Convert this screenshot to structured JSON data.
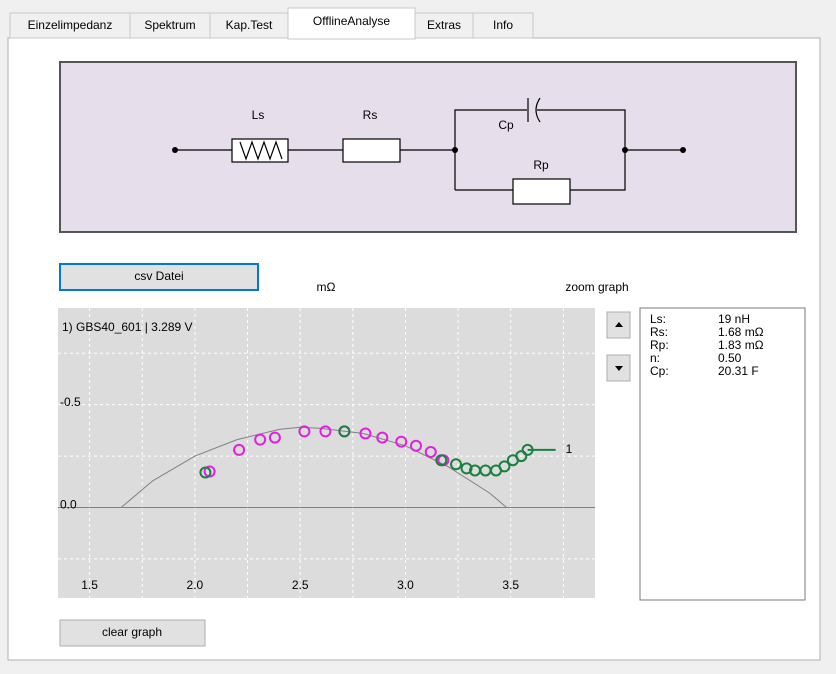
{
  "tabs": [
    "Einzelimpedanz",
    "Spektrum",
    "Kap.Test",
    "OfflineAnalyse",
    "Extras",
    "Info"
  ],
  "active_tab": 3,
  "circuit": {
    "labels": [
      "Ls",
      "Rs",
      "Cp",
      "Rp"
    ]
  },
  "buttons": {
    "csv": "csv Datei",
    "clear": "clear graph"
  },
  "unit_label": "mΩ",
  "zoom_label": "zoom graph",
  "results": [
    [
      "Ls:",
      "19 nH"
    ],
    [
      "Rs:",
      "1.68 mΩ"
    ],
    [
      "Rp:",
      "1.83 mΩ"
    ],
    [
      "n:",
      "0.50"
    ],
    [
      "Cp:",
      "20.31 F"
    ]
  ],
  "chart_data": {
    "type": "scatter",
    "title": "1) GBS40_601 | 3.289 V",
    "xlim": [
      1.35,
      3.9
    ],
    "ylim": [
      0.44,
      -0.97
    ],
    "xticks": [
      1.5,
      {
        "value": 2,
        "label": "2.0"
      },
      2.5,
      {
        "value": 3,
        "label": "3.0"
      },
      3.5
    ],
    "yticks": [
      -0.5,
      {
        "value": 0,
        "label": "0.0"
      }
    ],
    "xgrid": [
      1.75,
      2.25,
      2.75,
      3.25,
      3.75
    ],
    "ygrid": [
      -0.75,
      -0.25,
      0.25
    ],
    "grid": true,
    "series": [
      {
        "color": "#e020e0",
        "x": [
          2.07,
          2.21,
          2.31,
          2.38,
          2.52,
          2.62,
          2.71,
          2.81,
          2.89,
          2.98,
          3.05,
          3.12,
          3.18
        ],
        "values": [
          -0.175,
          -0.28,
          -0.33,
          -0.34,
          -0.37,
          -0.37,
          -0.37,
          -0.36,
          -0.34,
          -0.32,
          -0.3,
          -0.27,
          -0.23
        ]
      },
      {
        "name": "1",
        "color": "#1a8040",
        "x": [
          2.05,
          2.71,
          3.17,
          3.24,
          3.29,
          3.33,
          3.38,
          3.43,
          3.47,
          3.51,
          3.55,
          3.58
        ],
        "values": [
          -0.17,
          -0.37,
          -0.23,
          -0.21,
          -0.19,
          -0.18,
          -0.18,
          -0.18,
          -0.2,
          -0.23,
          -0.25,
          -0.28
        ]
      }
    ],
    "fit": {
      "color": "#808080",
      "x": [
        1.65,
        1.8,
        2.0,
        2.2,
        2.4,
        2.5,
        2.6,
        2.8,
        3.0,
        3.2,
        3.4,
        3.48
      ],
      "values": [
        0,
        -0.13,
        -0.25,
        -0.33,
        -0.38,
        -0.39,
        -0.385,
        -0.36,
        -0.3,
        -0.2,
        -0.07,
        0
      ]
    }
  }
}
